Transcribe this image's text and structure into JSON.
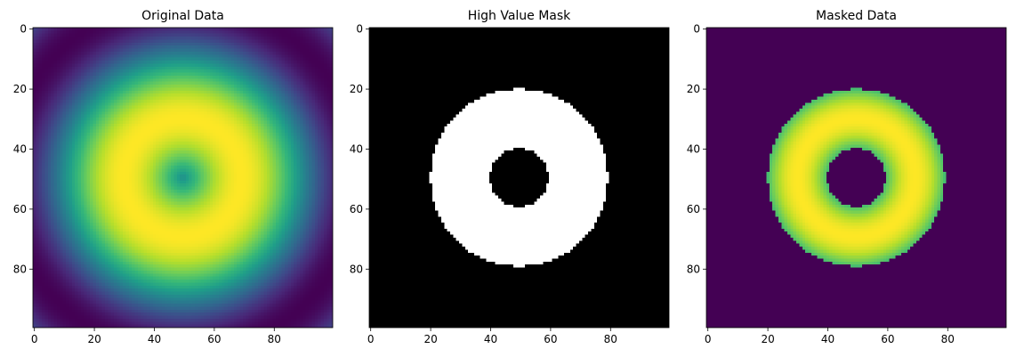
{
  "chart_data": [
    {
      "type": "heatmap",
      "title": "Original Data",
      "colormap": "viridis",
      "panel": "original",
      "extent": [
        0,
        99
      ],
      "field": "sin(r / 12.5), r = distance from (49.5, 49.5)",
      "x_ticks": [
        0,
        20,
        40,
        60,
        80
      ],
      "y_ticks": [
        0,
        20,
        40,
        60,
        80
      ]
    },
    {
      "type": "heatmap",
      "title": "High Value Mask",
      "colormap": "gray",
      "panel": "mask",
      "extent": [
        0,
        99
      ],
      "threshold": 0.7,
      "x_ticks": [
        0,
        20,
        40,
        60,
        80
      ],
      "y_ticks": [
        0,
        20,
        40,
        60,
        80
      ]
    },
    {
      "type": "heatmap",
      "title": "Masked Data",
      "colormap": "viridis",
      "panel": "masked",
      "extent": [
        0,
        99
      ],
      "threshold": 0.7,
      "x_ticks": [
        0,
        20,
        40,
        60,
        80
      ],
      "y_ticks": [
        0,
        20,
        40,
        60,
        80
      ]
    }
  ]
}
